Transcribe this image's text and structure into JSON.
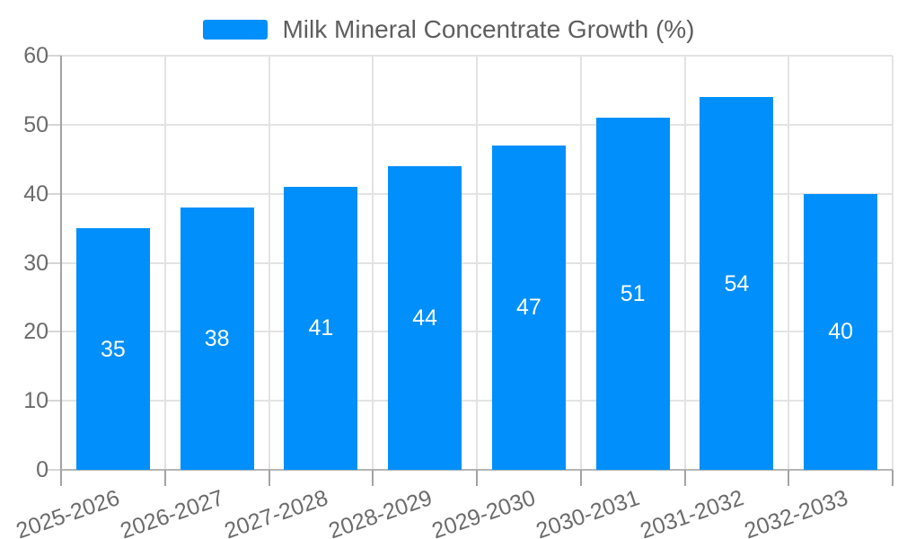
{
  "legend": {
    "label": "Milk Mineral Concentrate Growth (%)",
    "swatch_color": "#008FFB"
  },
  "chart_data": {
    "type": "bar",
    "title": "",
    "categories": [
      "2025-2026",
      "2026-2027",
      "2027-2028",
      "2028-2029",
      "2029-2030",
      "2030-2031",
      "2031-2032",
      "2032-2033"
    ],
    "series": [
      {
        "name": "Milk Mineral Concentrate Growth (%)",
        "values": [
          35,
          38,
          41,
          44,
          47,
          51,
          54,
          40
        ]
      }
    ],
    "value_labels": [
      35,
      38,
      41,
      44,
      47,
      51,
      54,
      40
    ],
    "xlabel": "",
    "ylabel": "",
    "ylim": [
      0,
      60
    ],
    "yticks": [
      0,
      10,
      20,
      30,
      40,
      50,
      60
    ],
    "grid": true,
    "legend_position": "top-center",
    "x_label_rotation_deg": -19
  },
  "colors": {
    "bar": "#008FFB",
    "grid": "#e3e3e3",
    "axis_line": "#a3a3a3",
    "zero_line": "#b5b5b5",
    "y_tick": "#d6d6d6",
    "tick_label": "#6b6b6b",
    "legend_text": "#5e5e5e",
    "value_label": "#ffffff",
    "background": "#ffffff"
  }
}
